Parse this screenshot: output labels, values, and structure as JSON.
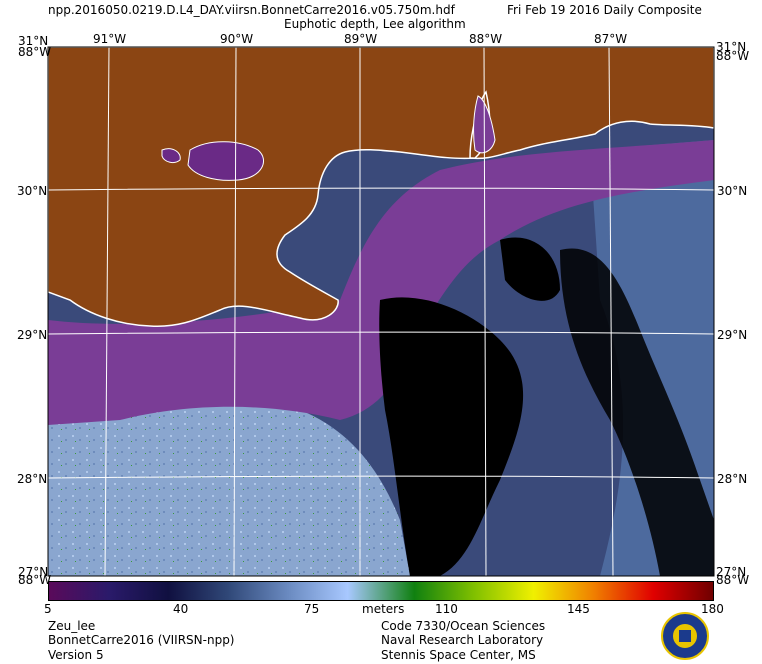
{
  "header": {
    "filename": "npp.2016050.0219.D.L4_DAY.viirsn.BonnetCarre2016.v05.750m.hdf",
    "date": "Fri Feb 19 2016 Daily Composite",
    "product": "Euphotic depth, Lee algorithm"
  },
  "map": {
    "lon_labels": [
      "91°W",
      "90°W",
      "89°W",
      "88°W",
      "87°W"
    ],
    "lat_labels": [
      "30°N",
      "29°N",
      "28°N"
    ],
    "corners": {
      "top_left_lat": "31°N",
      "top_left_lon": "88°W",
      "top_right_lat": "31°N",
      "top_right_lon": "88°W",
      "bottom_left_lat": "27°N",
      "bottom_left_lon": "88°W",
      "bottom_right_lat": "27°N",
      "bottom_right_lon": "88°W"
    },
    "colors": {
      "land": "#8b4513",
      "coast": "#ffffff",
      "nodata": "#000000",
      "shelf_water": "#7a3d96",
      "offshore_water": "#3a4a7a",
      "clear_water": "#8aa6cf",
      "grid": "#ffffff"
    }
  },
  "colorbar": {
    "ticks": [
      "5",
      "40",
      "75",
      "110",
      "145",
      "180"
    ],
    "unit": "meters",
    "stops": [
      "#5a0a5a",
      "#2a1a6a",
      "#101040",
      "#304878",
      "#6a8ac0",
      "#a8c8ff",
      "#108010",
      "#80c000",
      "#f0f000",
      "#f08000",
      "#e00000",
      "#700000"
    ]
  },
  "footer": {
    "left": [
      "Zeu_lee",
      "BonnetCarre2016 (VIIRSN-npp)",
      "Version 5"
    ],
    "right": [
      "Code 7330/Ocean Sciences",
      "Naval Research Laboratory",
      "Stennis Space Center, MS"
    ],
    "logo": "nrl-seal-icon"
  }
}
